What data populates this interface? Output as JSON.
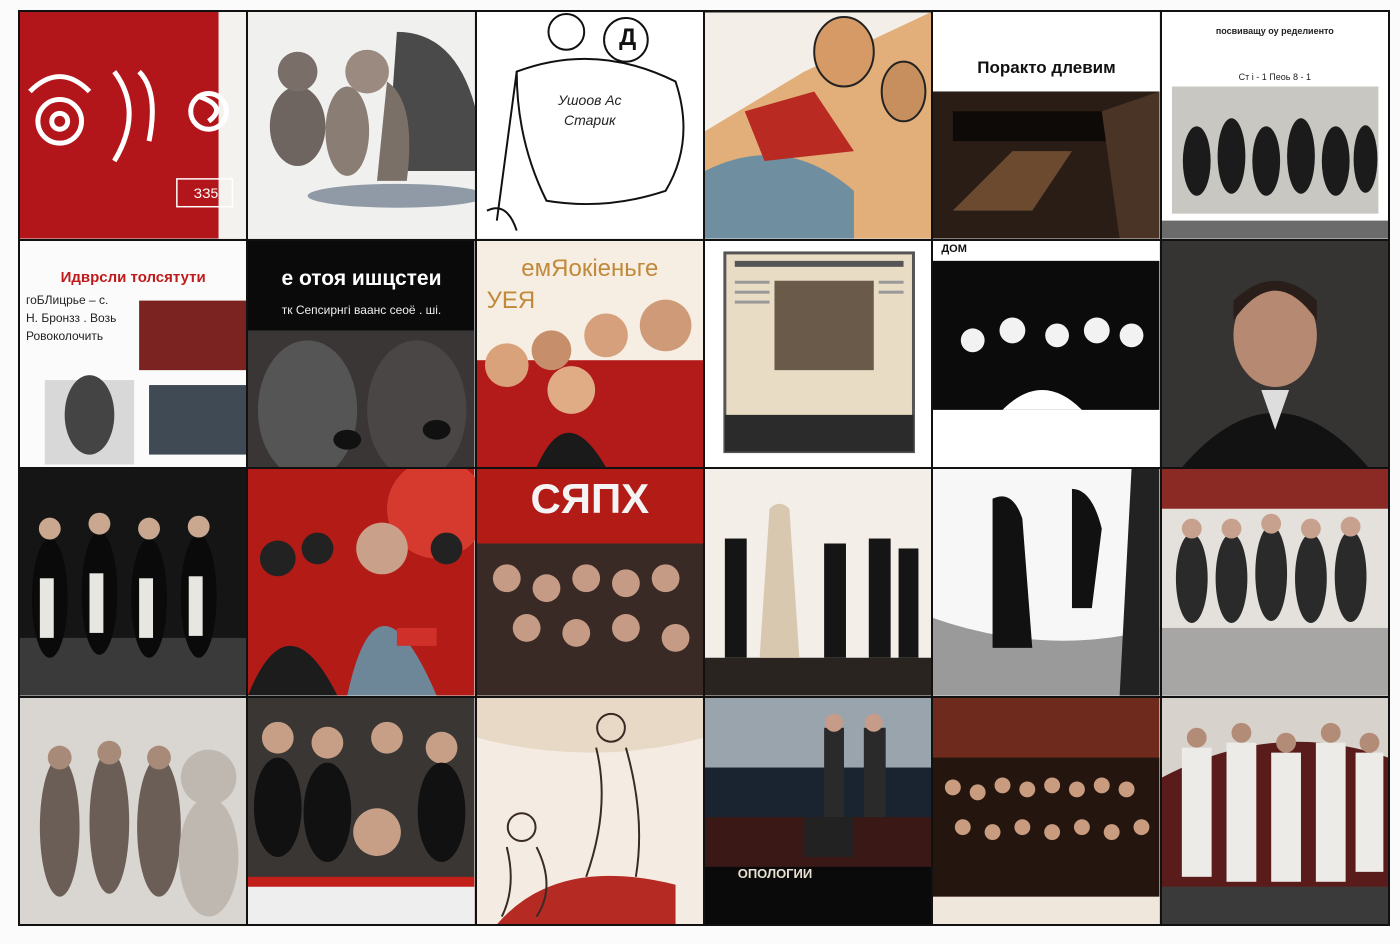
{
  "page": {
    "background": "#fbfbfb",
    "divider_color": "#111111"
  },
  "tiles": [
    {
      "name": "red-emblem-poster",
      "texts": {
        "badge": "ЗЗ5"
      }
    },
    {
      "name": "cartoon-figures",
      "texts": {}
    },
    {
      "name": "sketch-drawing",
      "texts": {
        "bubble": "Д",
        "line1": "Ушоов Ас",
        "line2": "Старик"
      }
    },
    {
      "name": "abstract-hands",
      "texts": {}
    },
    {
      "name": "dark-hall-poster",
      "texts": {
        "title": "Поракто длевим"
      }
    },
    {
      "name": "news-group-photo",
      "texts": {
        "head1": "посвиващу оу ределиенто",
        "head2": "Ст і - 1     Пеоь 8 - 1"
      }
    },
    {
      "name": "collage-page",
      "texts": {
        "title": "Идврсли толсятути",
        "l1": "гоБЛицрье – с.",
        "l2": "Н. Бронзз . Возь",
        "l3": "Ровоколочить"
      }
    },
    {
      "name": "black-banner",
      "texts": {
        "title": "е отоя ишцстеи",
        "subtitle": "тк Сепсирнгі ваанс сеоё . ші."
      }
    },
    {
      "name": "portrait-group-poster",
      "texts": {
        "title1": "емЯокіеньге",
        "title2": "УЕЯ"
      }
    },
    {
      "name": "newspaper-tablet",
      "texts": {}
    },
    {
      "name": "bw-crowd-poster",
      "texts": {
        "corner": "ДОМ"
      }
    },
    {
      "name": "man-portrait",
      "texts": {}
    },
    {
      "name": "group-in-white-scarves",
      "texts": {}
    },
    {
      "name": "red-crowd-scene",
      "texts": {}
    },
    {
      "name": "red-title-crowd",
      "texts": {
        "title": "СЯПХ"
      }
    },
    {
      "name": "stage-figures",
      "texts": {}
    },
    {
      "name": "silhouette-scene",
      "texts": {}
    },
    {
      "name": "seated-group-photo",
      "texts": {}
    },
    {
      "name": "faded-group-photo",
      "texts": {}
    },
    {
      "name": "crowd-with-table",
      "texts": {}
    },
    {
      "name": "theater-sketch",
      "texts": {}
    },
    {
      "name": "stage-desk-scene",
      "texts": {
        "desk": "ОПОЛОГИИ"
      }
    },
    {
      "name": "sepia-crowd",
      "texts": {}
    },
    {
      "name": "white-uniform-group",
      "texts": {}
    }
  ]
}
